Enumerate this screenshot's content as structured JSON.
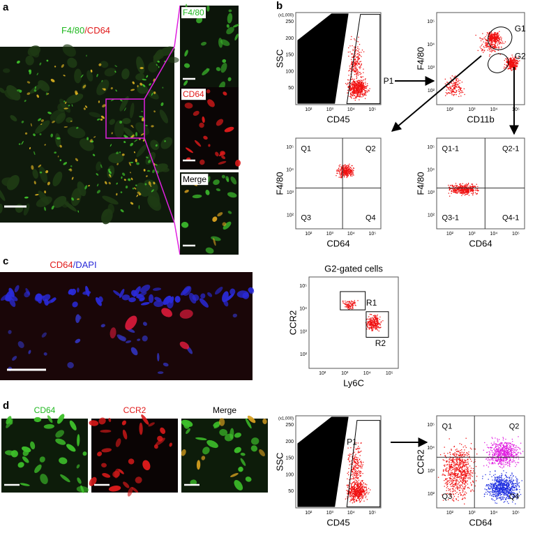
{
  "panel_a": {
    "label": "a",
    "title_green": "F4/80",
    "title_red": "/CD64",
    "insets": [
      "F4/80",
      "CD64",
      "Merge"
    ]
  },
  "panel_b": {
    "label": "b"
  },
  "panel_c": {
    "label": "c",
    "title_red": "CD64",
    "title_blue": "/DAPI"
  },
  "panel_d": {
    "label": "d",
    "images": [
      "CD64",
      "CCR2",
      "Merge"
    ]
  },
  "plots": [
    {
      "y_label": "SSC",
      "x_label": "CD45",
      "y_unit": "(x1,000)",
      "y_ticks": [
        "50",
        "100",
        "150",
        "200",
        "250"
      ],
      "x_ticks": [
        "10²",
        "10³",
        "10⁴",
        "10⁵"
      ],
      "gates": [
        "P1"
      ],
      "quadrants": []
    },
    {
      "y_label": "F4/80",
      "x_label": "CD11b",
      "y_ticks": [
        "10²",
        "10³",
        "10⁴",
        "10⁵"
      ],
      "x_ticks": [
        "10²",
        "10³",
        "10⁴",
        "10⁵"
      ],
      "gates": [
        "G1",
        "G2"
      ],
      "quadrants": []
    },
    {
      "y_label": "F4/80",
      "x_label": "CD64",
      "y_ticks": [
        "10²",
        "10³",
        "10⁴",
        "10⁵"
      ],
      "x_ticks": [
        "10²",
        "10³",
        "10⁴",
        "10⁵"
      ],
      "gates": [],
      "quadrants": [
        "Q1",
        "Q2",
        "Q3",
        "Q4"
      ]
    },
    {
      "y_label": "F4/80",
      "x_label": "CD64",
      "y_ticks": [
        "10²",
        "10³",
        "10⁴",
        "10⁵"
      ],
      "x_ticks": [
        "10²",
        "10³",
        "10⁴",
        "10⁵"
      ],
      "gates": [],
      "quadrants": [
        "Q1-1",
        "Q2-1",
        "Q3-1",
        "Q4-1"
      ]
    },
    {
      "title": "G2-gated cells",
      "y_label": "CCR2",
      "x_label": "Ly6C",
      "y_ticks": [
        "10²",
        "10³",
        "10⁴",
        "10⁵"
      ],
      "x_ticks": [
        "10²",
        "10³",
        "10⁴",
        "10⁵"
      ],
      "gates": [
        "R1",
        "R2"
      ],
      "quadrants": []
    },
    {
      "y_label": "SSC",
      "x_label": "CD45",
      "y_unit": "(x1,000)",
      "y_ticks": [
        "50",
        "100",
        "150",
        "200",
        "250"
      ],
      "x_ticks": [
        "10²",
        "10³",
        "10⁴",
        "10⁵"
      ],
      "gates": [
        "P1"
      ],
      "quadrants": []
    },
    {
      "y_label": "CCR2",
      "x_label": "CD64",
      "y_ticks": [
        "10²",
        "10³",
        "10⁴",
        "10⁵"
      ],
      "x_ticks": [
        "10²",
        "10³",
        "10⁴",
        "10⁵"
      ],
      "gates": [],
      "quadrants": [
        "Q1",
        "Q2",
        "Q3",
        "Q4"
      ]
    }
  ]
}
